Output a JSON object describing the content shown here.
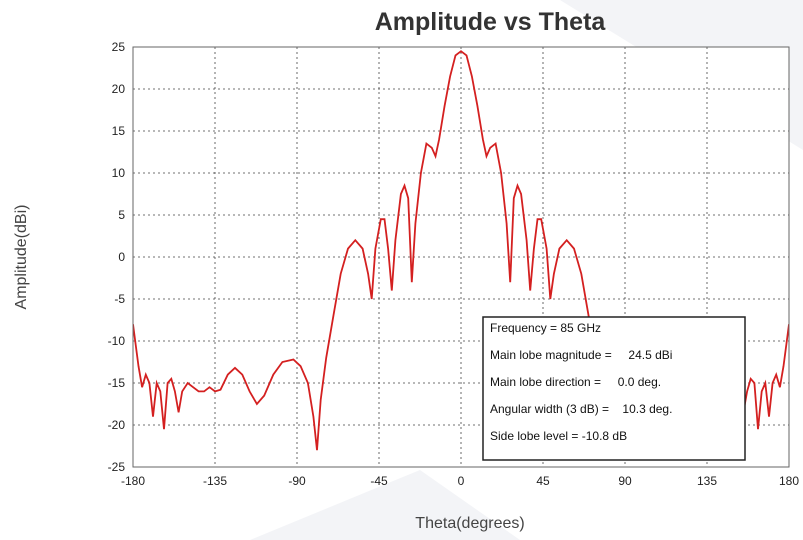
{
  "chart_data": {
    "type": "line",
    "title": "Amplitude vs Theta",
    "x_label": "Theta(degrees)",
    "y_label": "Amplitude(dBi)",
    "x": [
      -180,
      -177,
      -175,
      -173,
      -171,
      -169,
      -167,
      -165,
      -163,
      -161,
      -159,
      -157,
      -155,
      -153,
      -150,
      -147,
      -144,
      -141,
      -138,
      -135,
      -132,
      -128,
      -124,
      -120,
      -116,
      -112,
      -108,
      -103,
      -98,
      -92,
      -88,
      -84,
      -81,
      -79,
      -77,
      -74,
      -70,
      -66,
      -62,
      -58,
      -54,
      -51,
      -49,
      -47,
      -44,
      -42,
      -40,
      -38,
      -36,
      -33,
      -31,
      -29,
      -27,
      -25,
      -22,
      -19,
      -16,
      -14,
      -12,
      -9,
      -6,
      -3,
      0,
      3,
      6,
      9,
      12,
      14,
      16,
      19,
      22,
      25,
      27,
      29,
      31,
      33,
      36,
      38,
      40,
      42,
      44,
      47,
      49,
      51,
      54,
      58,
      62,
      66,
      70,
      74,
      77,
      79,
      81,
      84,
      88,
      92,
      98,
      103,
      108,
      112,
      116,
      120,
      124,
      128,
      132,
      135,
      138,
      141,
      144,
      147,
      150,
      153,
      155,
      157,
      159,
      161,
      163,
      165,
      167,
      169,
      171,
      173,
      175,
      177,
      180
    ],
    "values": [
      -8,
      -13,
      -15.5,
      -14,
      -15,
      -19,
      -15,
      -16,
      -20.5,
      -15,
      -14.5,
      -16,
      -18.5,
      -16,
      -15,
      -15.5,
      -16,
      -16,
      -15.5,
      -16,
      -15.8,
      -14,
      -13.2,
      -14,
      -16,
      -17.5,
      -16.5,
      -14,
      -12.5,
      -12.2,
      -13,
      -15,
      -19,
      -23,
      -17,
      -12,
      -7,
      -2,
      1,
      2,
      1,
      -2,
      -5,
      1,
      4.5,
      4.5,
      1,
      -4,
      2,
      7.5,
      8.5,
      7,
      -3,
      4,
      10,
      13.5,
      13,
      12,
      14,
      18,
      21.5,
      24,
      24.5,
      24,
      21.5,
      18,
      14,
      12,
      13,
      13.5,
      10,
      4,
      -3,
      7,
      8.5,
      7.5,
      2,
      -4,
      1,
      4.5,
      4.5,
      1,
      -5,
      -2,
      1,
      2,
      1,
      -2,
      -7,
      -12,
      -17,
      -23,
      -19,
      -15,
      -13,
      -12.2,
      -12.5,
      -14,
      -16.5,
      -17.5,
      -16,
      -14,
      -13.2,
      -14,
      -15.8,
      -16,
      -15.5,
      -16,
      -16,
      -15.5,
      -15,
      -16,
      -18.5,
      -16,
      -14.5,
      -15,
      -20.5,
      -16,
      -15,
      -19,
      -15,
      -14,
      -15.5,
      -13,
      -8
    ],
    "color": "#d42020",
    "xlim": [
      -180,
      180
    ],
    "xticks": [
      -180,
      -135,
      -90,
      -45,
      0,
      45,
      90,
      135,
      180
    ],
    "ylim": [
      -25,
      25
    ],
    "yticks": [
      -25,
      -20,
      -15,
      -10,
      -5,
      0,
      5,
      10,
      15,
      20,
      25
    ],
    "grid": true,
    "annotations": [
      "Frequency = 85 GHz",
      "Main lobe magnitude =     24.5 dBi",
      "Main lobe direction =     0.0 deg.",
      "Angular width (3 dB) =    10.3 deg.",
      "Side lobe level = -10.8 dB"
    ]
  }
}
